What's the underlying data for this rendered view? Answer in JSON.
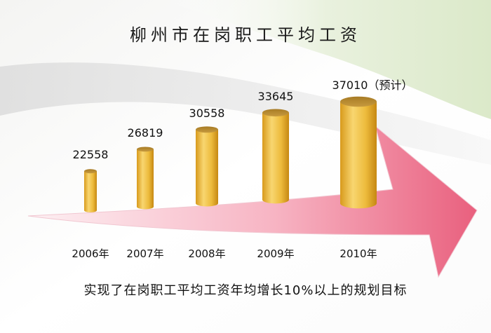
{
  "title": "柳州市在岗职工平均工资",
  "footnote": "实现了在岗职工平均工资年均增长10%以上的规划目标",
  "colors": {
    "bar_light": "#f7d46a",
    "bar_mid": "#e7b132",
    "bar_dark": "#c98b12",
    "bar_top": "#b88a2e",
    "arrow_light": "#fbe4ea",
    "arrow_dark": "#ec6d8a",
    "swoosh_green": "#e3eed6",
    "swoosh_gray": "#e4e4e4"
  },
  "chart_data": {
    "type": "bar",
    "title": "柳州市在岗职工平均工资",
    "categories": [
      "2006年",
      "2007年",
      "2008年",
      "2009年",
      "2010年"
    ],
    "values": [
      22558,
      26819,
      30558,
      33645,
      37010
    ],
    "value_labels": [
      "22558",
      "26819",
      "30558",
      "33645",
      "37010（预计）"
    ],
    "xlabel": "",
    "ylabel": "",
    "grid": false,
    "legend": "none"
  }
}
